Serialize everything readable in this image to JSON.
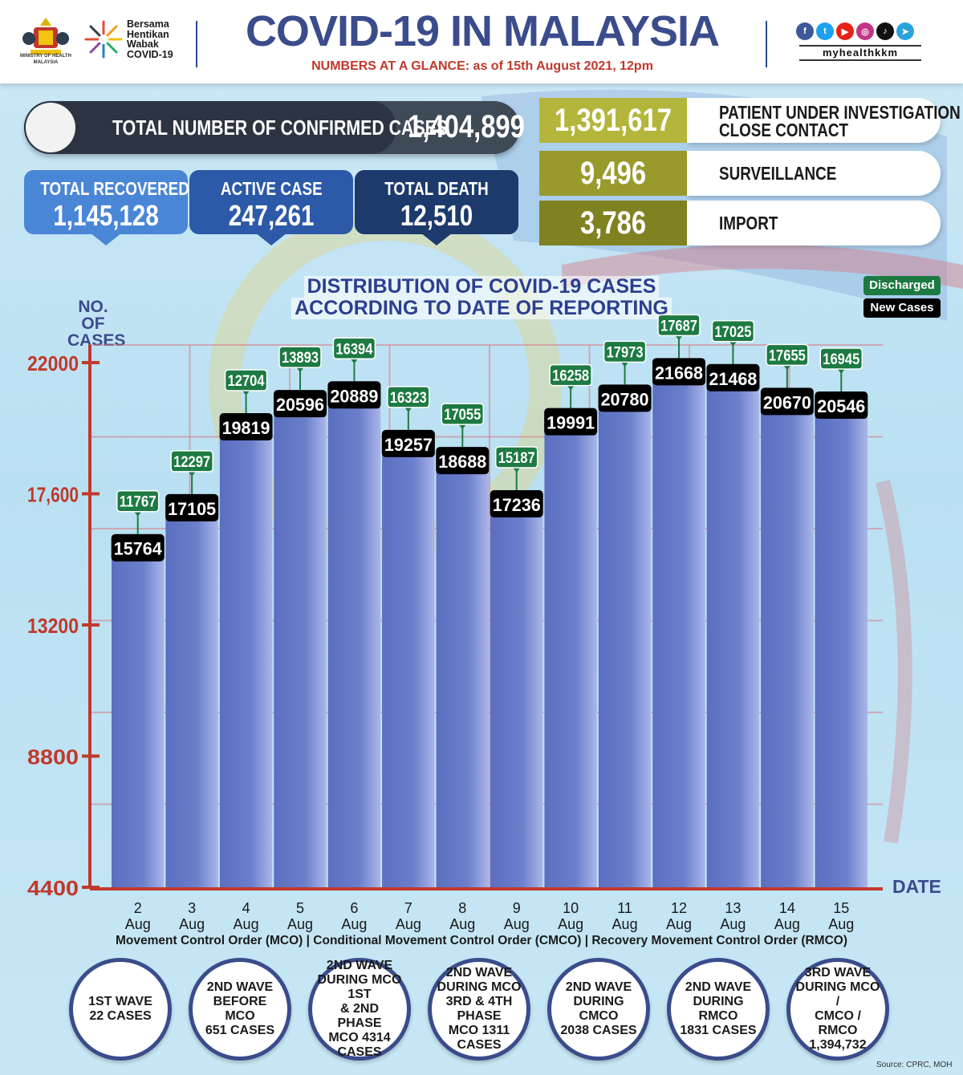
{
  "header": {
    "ministry": "MINISTRY OF HEALTH MALAYSIA",
    "campaign_lines": [
      "Bersama",
      "Hentikan",
      "Wabak",
      "COVID-19"
    ],
    "title": "COVID-19 IN MALAYSIA",
    "subtitle": "NUMBERS AT A GLANCE: as of 15th August 2021, 12pm",
    "handle": "myhealthkkm",
    "social_icons": [
      {
        "name": "facebook-icon",
        "glyph": "f",
        "color": "#3b5998"
      },
      {
        "name": "twitter-icon",
        "glyph": "t",
        "color": "#1da1f2"
      },
      {
        "name": "youtube-icon",
        "glyph": "▶",
        "color": "#e62117"
      },
      {
        "name": "instagram-icon",
        "glyph": "◎",
        "color": "#c13584"
      },
      {
        "name": "tiktok-icon",
        "glyph": "♪",
        "color": "#111111"
      },
      {
        "name": "telegram-icon",
        "glyph": "➤",
        "color": "#2aa3dd"
      }
    ]
  },
  "stats": {
    "confirmed_label": "TOTAL NUMBER OF CONFIRMED CASES",
    "confirmed_value": "1,404,899",
    "recovered_label": "TOTAL RECOVERED",
    "recovered_value": "1,145,128",
    "active_label": "ACTIVE CASE",
    "active_value": "247,261",
    "death_label": "TOTAL DEATH",
    "death_value": "12,510",
    "colors": {
      "recovered": "#4a86d6",
      "active": "#2c5aa8",
      "death": "#1c3a6b"
    }
  },
  "categories": [
    {
      "value": "1,391,617",
      "label_lines": [
        "PATIENT UNDER INVESTIGATION /",
        "CLOSE CONTACT"
      ],
      "color": "#b3b63a"
    },
    {
      "value": "9,496",
      "label_lines": [
        "SURVEILLANCE"
      ],
      "color": "#989a2c"
    },
    {
      "value": "3,786",
      "label_lines": [
        "IMPORT"
      ],
      "color": "#808222"
    }
  ],
  "chart_data": {
    "type": "bar",
    "title_lines": [
      "DISTRIBUTION OF COVID-19 CASES",
      "ACCORDING TO DATE OF REPORTING"
    ],
    "ylabel_lines": [
      "NO. OF",
      "CASES"
    ],
    "xlabel": "DATE",
    "categories": [
      "2 Aug",
      "3 Aug",
      "4 Aug",
      "5 Aug",
      "6 Aug",
      "7 Aug",
      "8 Aug",
      "9 Aug",
      "10 Aug",
      "11 Aug",
      "12 Aug",
      "13 Aug",
      "14 Aug",
      "15 Aug"
    ],
    "series": [
      {
        "name": "New Cases",
        "values": [
          15764,
          17105,
          19819,
          20596,
          20889,
          19257,
          18688,
          17236,
          19991,
          20780,
          21668,
          21468,
          20670,
          20546
        ],
        "color": "#000000"
      },
      {
        "name": "Discharged",
        "values": [
          11767,
          12297,
          12704,
          13893,
          16394,
          16323,
          17055,
          15187,
          16258,
          17973,
          17687,
          17025,
          17655,
          16945
        ],
        "color": "#1d7a42"
      }
    ],
    "yticks": [
      4400,
      8800,
      13200,
      17600,
      22000
    ],
    "ytick_labels": [
      "4400",
      "8800",
      "13200",
      "17,600",
      "22000"
    ],
    "ylim": [
      4400,
      22000
    ],
    "bar_color": "#6b7fcb",
    "grid": true,
    "legend": "top-right"
  },
  "footer": {
    "caption": "Movement Control Order (MCO) | Conditional Movement Control Order (CMCO) | Recovery Movement Control Order (RMCO)",
    "waves": [
      [
        "1ST WAVE",
        "22 CASES"
      ],
      [
        "2ND WAVE",
        "BEFORE MCO",
        "651 CASES"
      ],
      [
        "2ND WAVE",
        "DURING MCO 1ST",
        "& 2ND PHASE",
        "MCO 4314",
        "CASES"
      ],
      [
        "2ND WAVE",
        "DURING MCO",
        "3RD & 4TH PHASE",
        "MCO 1311",
        "CASES"
      ],
      [
        "2ND WAVE",
        "DURING CMCO",
        "2038 CASES"
      ],
      [
        "2ND WAVE",
        "DURING RMCO",
        "1831 CASES"
      ],
      [
        "3RD WAVE",
        "DURING MCO /",
        "CMCO / RMCO",
        "1,394,732"
      ]
    ],
    "source": "Source: CPRC, MOH"
  }
}
